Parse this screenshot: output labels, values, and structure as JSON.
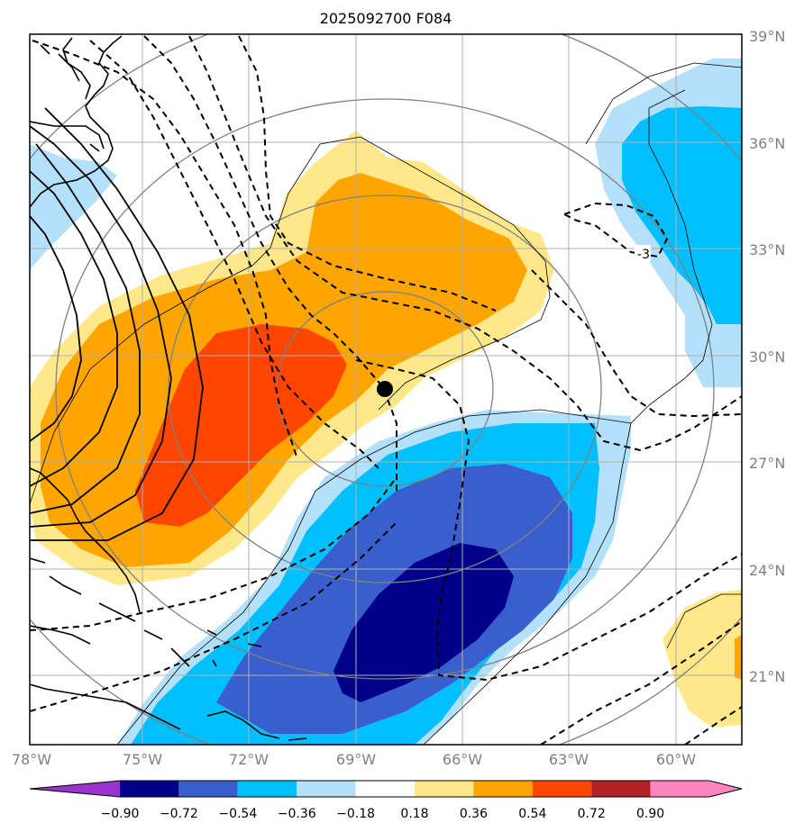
{
  "title": "2025092700 F084",
  "colors": {
    "neg_090": "#9933cc",
    "neg_072": "#00008b",
    "neg_054": "#3a5fcd",
    "neg_036": "#00bfff",
    "neg_018": "#b3e0fa",
    "zero": "#ffffff",
    "pos_018": "#ffe88a",
    "pos_036": "#ffa500",
    "pos_054": "#ff4500",
    "pos_072": "#b22222",
    "pos_090": "#ff85c0",
    "coast": "#000000",
    "range_ring": "#808080",
    "gridline": "#b0b0b0",
    "storm_marker": "#000000"
  },
  "map": {
    "lon_labels": [
      "78°W",
      "75°W",
      "72°W",
      "69°W",
      "66°W",
      "63°W",
      "60°W"
    ],
    "lat_labels": [
      "39°N",
      "36°N",
      "33°N",
      "30°N",
      "27°N",
      "24°N",
      "21°N"
    ],
    "contour_label": "-3",
    "storm_marker_icon": "storm-center-dot"
  },
  "colorbar": {
    "ticks": [
      "−0.90",
      "−0.72",
      "−0.54",
      "−0.36",
      "−0.18",
      "0.18",
      "0.36",
      "0.54",
      "0.72",
      "0.90"
    ]
  },
  "chart_data": {
    "type": "heatmap",
    "title": "2025092700 F084",
    "xlim": [
      -78,
      -58
    ],
    "ylim": [
      19,
      39
    ],
    "x_ticks": [
      -78,
      -75,
      -72,
      -69,
      -66,
      -63,
      -60
    ],
    "y_ticks": [
      39,
      36,
      33,
      30,
      27,
      24,
      21
    ],
    "levels": [
      -0.9,
      -0.72,
      -0.54,
      -0.36,
      -0.18,
      0.18,
      0.36,
      0.54,
      0.72,
      0.9
    ],
    "storm_center": {
      "lon": -68.2,
      "lat": 29.1
    },
    "labeled_contour_value": -3,
    "features": [
      "positive anomaly band (up to 0.54–0.72) from SE US coast NE to ~65W 33N",
      "negative anomaly core (below -0.72) near 67W 22N",
      "negative anomaly region (-0.36 to -0.54) near 60W 34N",
      "weak positive anomaly near 59W 21N",
      "solid black contours (positive) off the US east coast",
      "dashed black contours (negative) around storm"
    ]
  }
}
